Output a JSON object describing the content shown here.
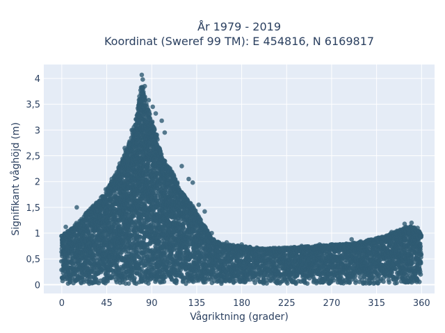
{
  "chart_data": {
    "type": "scatter",
    "title": "År 1979 - 2019",
    "subtitle": "Koordinat (Sweref 99 TM): E 454816, N 6169817",
    "xlabel": "Vågriktning (grader)",
    "ylabel": "Signifikant våghöjd (m)",
    "xlim": [
      -18,
      373
    ],
    "ylim": [
      -0.17,
      4.27
    ],
    "x_ticks": [
      0,
      45,
      90,
      135,
      180,
      225,
      270,
      315,
      360
    ],
    "x_tick_labels": [
      "0",
      "45",
      "90",
      "135",
      "180",
      "225",
      "270",
      "315",
      "360"
    ],
    "y_ticks": [
      0,
      0.5,
      1,
      1.5,
      2,
      2.5,
      3,
      3.5,
      4
    ],
    "y_tick_labels": [
      "0",
      "0,5",
      "1",
      "1,5",
      "2",
      "2,5",
      "3",
      "3,5",
      "4"
    ],
    "grid": true,
    "marker_color": "#2f5b73",
    "background": "#e5ecf6",
    "envelope": {
      "description_points": "upper bound of observed wave heights by direction",
      "direction": [
        0,
        10,
        20,
        30,
        40,
        50,
        60,
        70,
        75,
        80,
        85,
        90,
        95,
        100,
        110,
        120,
        130,
        140,
        150,
        160,
        180,
        200,
        225,
        250,
        270,
        290,
        300,
        315,
        330,
        340,
        350,
        360
      ],
      "max_height": [
        0.95,
        1.1,
        1.3,
        1.5,
        1.7,
        2.0,
        2.4,
        2.9,
        3.3,
        3.9,
        3.5,
        3.2,
        2.9,
        2.5,
        2.2,
        1.8,
        1.55,
        1.25,
        0.9,
        0.8,
        0.75,
        0.7,
        0.72,
        0.75,
        0.78,
        0.8,
        0.85,
        0.9,
        1.0,
        1.1,
        1.15,
        1.0
      ]
    },
    "highlight_points": [
      {
        "x": 80,
        "y": 4.07
      },
      {
        "x": 81,
        "y": 3.98
      },
      {
        "x": 83,
        "y": 3.85
      },
      {
        "x": 80,
        "y": 3.72
      },
      {
        "x": 78,
        "y": 3.55
      },
      {
        "x": 87,
        "y": 3.58
      },
      {
        "x": 91,
        "y": 3.45
      },
      {
        "x": 94,
        "y": 3.32
      },
      {
        "x": 100,
        "y": 3.18
      },
      {
        "x": 103,
        "y": 2.95
      },
      {
        "x": 70,
        "y": 3.0
      },
      {
        "x": 68,
        "y": 2.72
      },
      {
        "x": 63,
        "y": 2.65
      },
      {
        "x": 58,
        "y": 2.35
      },
      {
        "x": 55,
        "y": 2.18
      },
      {
        "x": 50,
        "y": 2.05
      },
      {
        "x": 44,
        "y": 1.85
      },
      {
        "x": 38,
        "y": 1.62
      },
      {
        "x": 30,
        "y": 1.48
      },
      {
        "x": 15,
        "y": 1.5
      },
      {
        "x": 4,
        "y": 1.12
      },
      {
        "x": 120,
        "y": 2.3
      },
      {
        "x": 127,
        "y": 2.05
      },
      {
        "x": 131,
        "y": 1.98
      },
      {
        "x": 137,
        "y": 1.55
      },
      {
        "x": 143,
        "y": 1.42
      },
      {
        "x": 150,
        "y": 1.0
      },
      {
        "x": 165,
        "y": 0.82
      },
      {
        "x": 180,
        "y": 0.78
      },
      {
        "x": 195,
        "y": 0.72
      },
      {
        "x": 240,
        "y": 0.75
      },
      {
        "x": 258,
        "y": 0.78
      },
      {
        "x": 270,
        "y": 0.78
      },
      {
        "x": 290,
        "y": 0.88
      },
      {
        "x": 305,
        "y": 0.85
      },
      {
        "x": 320,
        "y": 0.82
      },
      {
        "x": 330,
        "y": 1.02
      },
      {
        "x": 343,
        "y": 1.18
      },
      {
        "x": 350,
        "y": 1.2
      },
      {
        "x": 356,
        "y": 1.1
      }
    ]
  }
}
